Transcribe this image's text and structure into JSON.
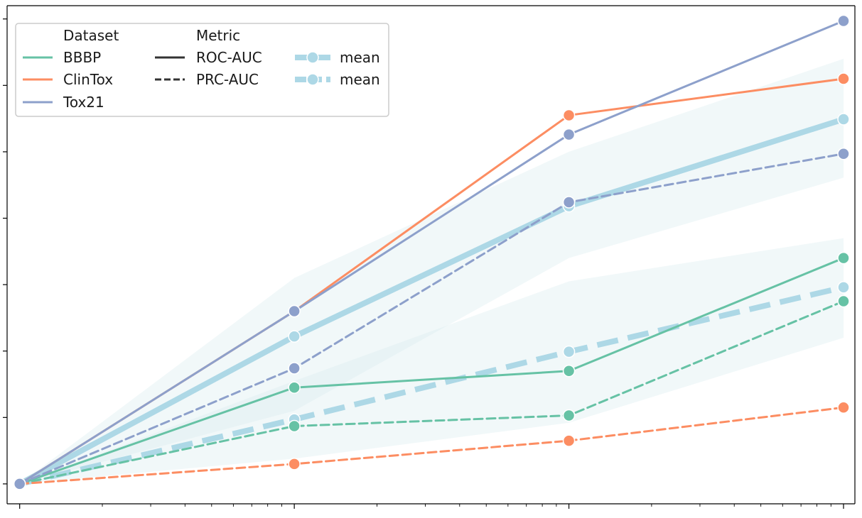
{
  "chart_data": {
    "type": "line",
    "title": "",
    "xlabel": "",
    "ylabel": "",
    "x_scale": "log",
    "x": [
      1,
      10,
      100,
      1000
    ],
    "xlim": [
      0.9,
      1100
    ],
    "ylim": [
      0.97,
      1.72
    ],
    "grid": false,
    "legend_placement": "top-left",
    "legend": {
      "dataset_heading": "Dataset",
      "metric_heading": "Metric",
      "metric_roc": "ROC-AUC",
      "metric_prc": "PRC-AUC",
      "mean_roc": "mean",
      "mean_prc": "mean"
    },
    "colors": {
      "BBBP": "#66c2a5",
      "ClinTox": "#fc8d62",
      "Tox21": "#8da0cb",
      "mean": "#add8e6",
      "band": "#d6ecef",
      "axis": "#000000"
    },
    "series": [
      {
        "name": "BBBP",
        "metric": "ROC-AUC",
        "values": [
          1.0,
          1.145,
          1.17,
          1.34
        ]
      },
      {
        "name": "BBBP",
        "metric": "PRC-AUC",
        "values": [
          1.0,
          1.087,
          1.103,
          1.275
        ]
      },
      {
        "name": "ClinTox",
        "metric": "ROC-AUC",
        "values": [
          1.0,
          1.26,
          1.555,
          1.61
        ]
      },
      {
        "name": "ClinTox",
        "metric": "PRC-AUC",
        "values": [
          1.0,
          1.03,
          1.065,
          1.115
        ]
      },
      {
        "name": "Tox21",
        "metric": "ROC-AUC",
        "values": [
          1.0,
          1.26,
          1.526,
          1.697
        ]
      },
      {
        "name": "Tox21",
        "metric": "PRC-AUC",
        "values": [
          1.0,
          1.174,
          1.424,
          1.497
        ]
      },
      {
        "name": "mean",
        "metric": "ROC-AUC",
        "values": [
          1.0,
          1.222,
          1.418,
          1.549
        ],
        "band": [
          [
            1.0,
            1.0
          ],
          [
            1.11,
            1.31
          ],
          [
            1.34,
            1.5
          ],
          [
            1.461,
            1.64
          ]
        ]
      },
      {
        "name": "mean",
        "metric": "PRC-AUC",
        "values": [
          1.0,
          1.097,
          1.199,
          1.296
        ],
        "band": [
          [
            1.0,
            1.0
          ],
          [
            1.038,
            1.155
          ],
          [
            1.092,
            1.305
          ],
          [
            1.22,
            1.37
          ]
        ]
      }
    ]
  }
}
